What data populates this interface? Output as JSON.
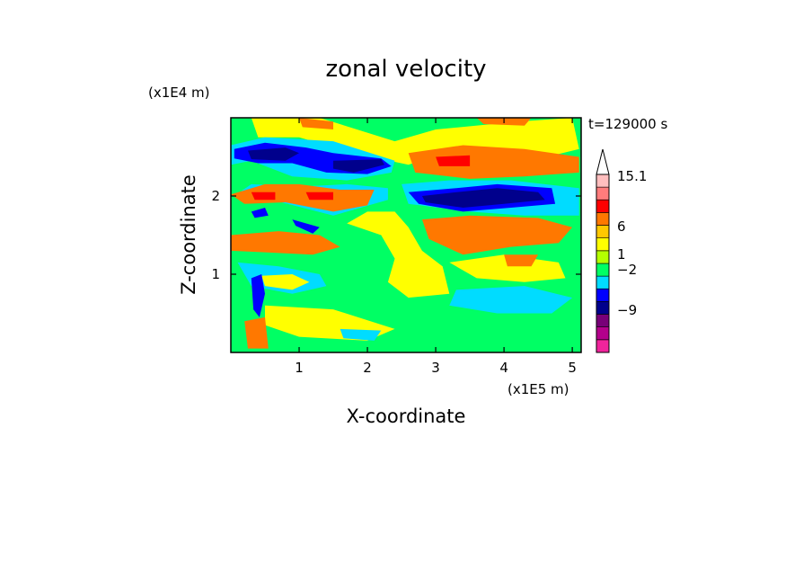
{
  "chart_data": {
    "type": "heatmap",
    "title": "zonal velocity",
    "xlabel": "X-coordinate",
    "ylabel": "Z-coordinate",
    "x_unit": "(x1E5 m)",
    "y_unit": "(x1E4 m)",
    "time_label": "t=129000 s",
    "x_ticks": [
      1,
      2,
      3,
      4,
      5
    ],
    "y_ticks": [
      1,
      2
    ],
    "xlim": [
      0,
      5.13
    ],
    "ylim": [
      0,
      3.0
    ],
    "colorbar": {
      "shown_labels": [
        "15.1",
        "6",
        "1",
        "−2",
        "−9"
      ],
      "colors": [
        "#f0249c",
        "#b4008c",
        "#780078",
        "#00008c",
        "#0000ff",
        "#00dcff",
        "#00ff64",
        "#b4ff00",
        "#ffff00",
        "#ffc800",
        "#ff7800",
        "#ff0000",
        "#ff7c7c",
        "#ffbebe"
      ],
      "over_color": "#ffffff"
    },
    "regions": [
      {
        "level": "yellow",
        "pts": [
          [
            0.3,
            3
          ],
          [
            1.3,
            3
          ],
          [
            2.4,
            2.7
          ],
          [
            3.0,
            2.85
          ],
          [
            4.2,
            2.95
          ],
          [
            5,
            3
          ],
          [
            5.1,
            2.6
          ],
          [
            4.4,
            2.45
          ],
          [
            3.3,
            2.6
          ],
          [
            2.6,
            2.4
          ],
          [
            1.8,
            2.55
          ],
          [
            1.0,
            2.75
          ],
          [
            0.4,
            2.75
          ]
        ]
      },
      {
        "level": "orange",
        "pts": [
          [
            1.0,
            3
          ],
          [
            1.5,
            2.95
          ],
          [
            1.5,
            2.85
          ],
          [
            1.05,
            2.88
          ]
        ]
      },
      {
        "level": "orange",
        "pts": [
          [
            3.6,
            3
          ],
          [
            4.4,
            3
          ],
          [
            4.3,
            2.9
          ],
          [
            3.7,
            2.92
          ]
        ]
      },
      {
        "level": "cyan",
        "pts": [
          [
            0,
            2.65
          ],
          [
            0.5,
            2.75
          ],
          [
            1.5,
            2.7
          ],
          [
            2.4,
            2.45
          ],
          [
            2.35,
            2.3
          ],
          [
            1.7,
            2.2
          ],
          [
            0.9,
            2.25
          ],
          [
            0.3,
            2.45
          ],
          [
            0,
            2.4
          ]
        ]
      },
      {
        "level": "blue",
        "pts": [
          [
            0.05,
            2.6
          ],
          [
            0.5,
            2.68
          ],
          [
            1.1,
            2.62
          ],
          [
            1.5,
            2.55
          ],
          [
            2.2,
            2.48
          ],
          [
            2.35,
            2.38
          ],
          [
            2.0,
            2.28
          ],
          [
            1.4,
            2.3
          ],
          [
            0.9,
            2.42
          ],
          [
            0.4,
            2.42
          ],
          [
            0.05,
            2.48
          ]
        ]
      },
      {
        "level": "navy",
        "pts": [
          [
            0.25,
            2.58
          ],
          [
            0.8,
            2.62
          ],
          [
            1.0,
            2.55
          ],
          [
            0.8,
            2.45
          ],
          [
            0.3,
            2.47
          ]
        ]
      },
      {
        "level": "navy",
        "pts": [
          [
            1.5,
            2.45
          ],
          [
            2.2,
            2.47
          ],
          [
            2.25,
            2.4
          ],
          [
            1.8,
            2.3
          ],
          [
            1.5,
            2.35
          ]
        ]
      },
      {
        "level": "cyan",
        "pts": [
          [
            0.05,
            2.0
          ],
          [
            0.6,
            1.95
          ],
          [
            1.5,
            1.75
          ],
          [
            2.3,
            1.95
          ],
          [
            2.3,
            2.1
          ],
          [
            1.7,
            2.15
          ],
          [
            1.0,
            2.12
          ],
          [
            0.3,
            2.15
          ]
        ]
      },
      {
        "level": "orange",
        "pts": [
          [
            0.0,
            2.02
          ],
          [
            0.5,
            2.15
          ],
          [
            1.0,
            2.15
          ],
          [
            1.6,
            2.08
          ],
          [
            2.1,
            2.08
          ],
          [
            2.0,
            1.88
          ],
          [
            1.5,
            1.8
          ],
          [
            0.8,
            1.92
          ],
          [
            0.2,
            1.9
          ]
        ]
      },
      {
        "level": "red",
        "pts": [
          [
            0.3,
            2.05
          ],
          [
            0.65,
            2.05
          ],
          [
            0.65,
            1.95
          ],
          [
            0.35,
            1.95
          ]
        ]
      },
      {
        "level": "red",
        "pts": [
          [
            1.1,
            2.05
          ],
          [
            1.5,
            2.05
          ],
          [
            1.5,
            1.95
          ],
          [
            1.15,
            1.95
          ]
        ]
      },
      {
        "level": "orange",
        "pts": [
          [
            2.6,
            2.55
          ],
          [
            3.4,
            2.65
          ],
          [
            4.3,
            2.6
          ],
          [
            5.1,
            2.5
          ],
          [
            5.1,
            2.3
          ],
          [
            4.3,
            2.25
          ],
          [
            3.5,
            2.22
          ],
          [
            2.7,
            2.3
          ]
        ]
      },
      {
        "level": "red",
        "pts": [
          [
            3.0,
            2.5
          ],
          [
            3.5,
            2.52
          ],
          [
            3.5,
            2.38
          ],
          [
            3.05,
            2.38
          ]
        ]
      },
      {
        "level": "cyan",
        "pts": [
          [
            2.5,
            2.15
          ],
          [
            3.2,
            2.2
          ],
          [
            4.1,
            2.2
          ],
          [
            5.1,
            2.1
          ],
          [
            5.1,
            1.75
          ],
          [
            4.3,
            1.75
          ],
          [
            3.5,
            1.8
          ],
          [
            2.6,
            1.9
          ]
        ]
      },
      {
        "level": "blue",
        "pts": [
          [
            2.6,
            2.05
          ],
          [
            3.3,
            2.1
          ],
          [
            3.9,
            2.15
          ],
          [
            4.7,
            2.1
          ],
          [
            4.75,
            1.9
          ],
          [
            4.1,
            1.85
          ],
          [
            3.4,
            1.8
          ],
          [
            2.75,
            1.9
          ]
        ]
      },
      {
        "level": "navy",
        "pts": [
          [
            2.8,
            2.0
          ],
          [
            3.3,
            2.05
          ],
          [
            3.9,
            2.1
          ],
          [
            4.5,
            2.05
          ],
          [
            4.6,
            1.95
          ],
          [
            4.0,
            1.9
          ],
          [
            3.4,
            1.85
          ],
          [
            2.85,
            1.92
          ]
        ]
      },
      {
        "level": "orange",
        "pts": [
          [
            2.8,
            1.7
          ],
          [
            3.5,
            1.75
          ],
          [
            4.5,
            1.72
          ],
          [
            5.0,
            1.6
          ],
          [
            4.8,
            1.4
          ],
          [
            4.1,
            1.35
          ],
          [
            3.4,
            1.25
          ],
          [
            2.9,
            1.45
          ]
        ]
      },
      {
        "level": "yellow",
        "pts": [
          [
            3.2,
            1.15
          ],
          [
            4.0,
            1.25
          ],
          [
            4.8,
            1.15
          ],
          [
            4.9,
            0.95
          ],
          [
            4.3,
            0.9
          ],
          [
            3.6,
            0.95
          ]
        ]
      },
      {
        "level": "orange",
        "pts": [
          [
            4.0,
            1.25
          ],
          [
            4.5,
            1.25
          ],
          [
            4.4,
            1.1
          ],
          [
            4.05,
            1.1
          ]
        ]
      },
      {
        "level": "cyan",
        "pts": [
          [
            3.3,
            0.8
          ],
          [
            4.3,
            0.85
          ],
          [
            5.0,
            0.7
          ],
          [
            4.7,
            0.5
          ],
          [
            3.9,
            0.5
          ],
          [
            3.2,
            0.6
          ]
        ]
      },
      {
        "level": "green",
        "pts": [
          [
            2.7,
            0.55
          ],
          [
            3.5,
            0.55
          ],
          [
            4.6,
            0.4
          ],
          [
            5.05,
            0.25
          ],
          [
            4.6,
            0.12
          ],
          [
            3.6,
            0.15
          ],
          [
            2.8,
            0.3
          ]
        ]
      },
      {
        "level": "orange",
        "pts": [
          [
            0.0,
            1.5
          ],
          [
            0.7,
            1.55
          ],
          [
            1.3,
            1.5
          ],
          [
            1.6,
            1.35
          ],
          [
            1.2,
            1.25
          ],
          [
            0.5,
            1.28
          ],
          [
            0.0,
            1.3
          ]
        ]
      },
      {
        "level": "cyan",
        "pts": [
          [
            0.1,
            1.15
          ],
          [
            0.7,
            1.1
          ],
          [
            1.3,
            1.0
          ],
          [
            1.4,
            0.85
          ],
          [
            0.9,
            0.75
          ],
          [
            0.3,
            0.85
          ]
        ]
      },
      {
        "level": "yellow",
        "pts": [
          [
            0.45,
            0.98
          ],
          [
            0.9,
            1.0
          ],
          [
            1.15,
            0.9
          ],
          [
            0.9,
            0.8
          ],
          [
            0.5,
            0.85
          ]
        ]
      },
      {
        "level": "blue",
        "pts": [
          [
            0.3,
            0.95
          ],
          [
            0.45,
            1.0
          ],
          [
            0.5,
            0.75
          ],
          [
            0.42,
            0.45
          ],
          [
            0.33,
            0.55
          ]
        ]
      },
      {
        "level": "blue",
        "pts": [
          [
            0.3,
            1.8
          ],
          [
            0.5,
            1.85
          ],
          [
            0.55,
            1.75
          ],
          [
            0.35,
            1.72
          ]
        ]
      },
      {
        "level": "blue",
        "pts": [
          [
            0.9,
            1.7
          ],
          [
            1.3,
            1.6
          ],
          [
            1.2,
            1.52
          ],
          [
            0.95,
            1.62
          ]
        ]
      },
      {
        "level": "yellow",
        "pts": [
          [
            1.7,
            1.65
          ],
          [
            2.2,
            1.5
          ],
          [
            2.4,
            1.2
          ],
          [
            2.3,
            0.9
          ],
          [
            2.6,
            0.7
          ],
          [
            3.2,
            0.75
          ],
          [
            3.1,
            1.1
          ],
          [
            2.8,
            1.3
          ],
          [
            2.6,
            1.6
          ],
          [
            2.4,
            1.8
          ],
          [
            2.0,
            1.8
          ]
        ]
      },
      {
        "level": "yellow",
        "pts": [
          [
            0.5,
            0.6
          ],
          [
            1.5,
            0.55
          ],
          [
            2.4,
            0.3
          ],
          [
            2.0,
            0.15
          ],
          [
            1.0,
            0.2
          ],
          [
            0.5,
            0.35
          ]
        ]
      },
      {
        "level": "orange",
        "pts": [
          [
            0.2,
            0.4
          ],
          [
            0.5,
            0.45
          ],
          [
            0.55,
            0.05
          ],
          [
            0.25,
            0.05
          ]
        ]
      },
      {
        "level": "cyan",
        "pts": [
          [
            1.6,
            0.3
          ],
          [
            2.2,
            0.28
          ],
          [
            2.1,
            0.15
          ],
          [
            1.65,
            0.18
          ]
        ]
      }
    ]
  }
}
